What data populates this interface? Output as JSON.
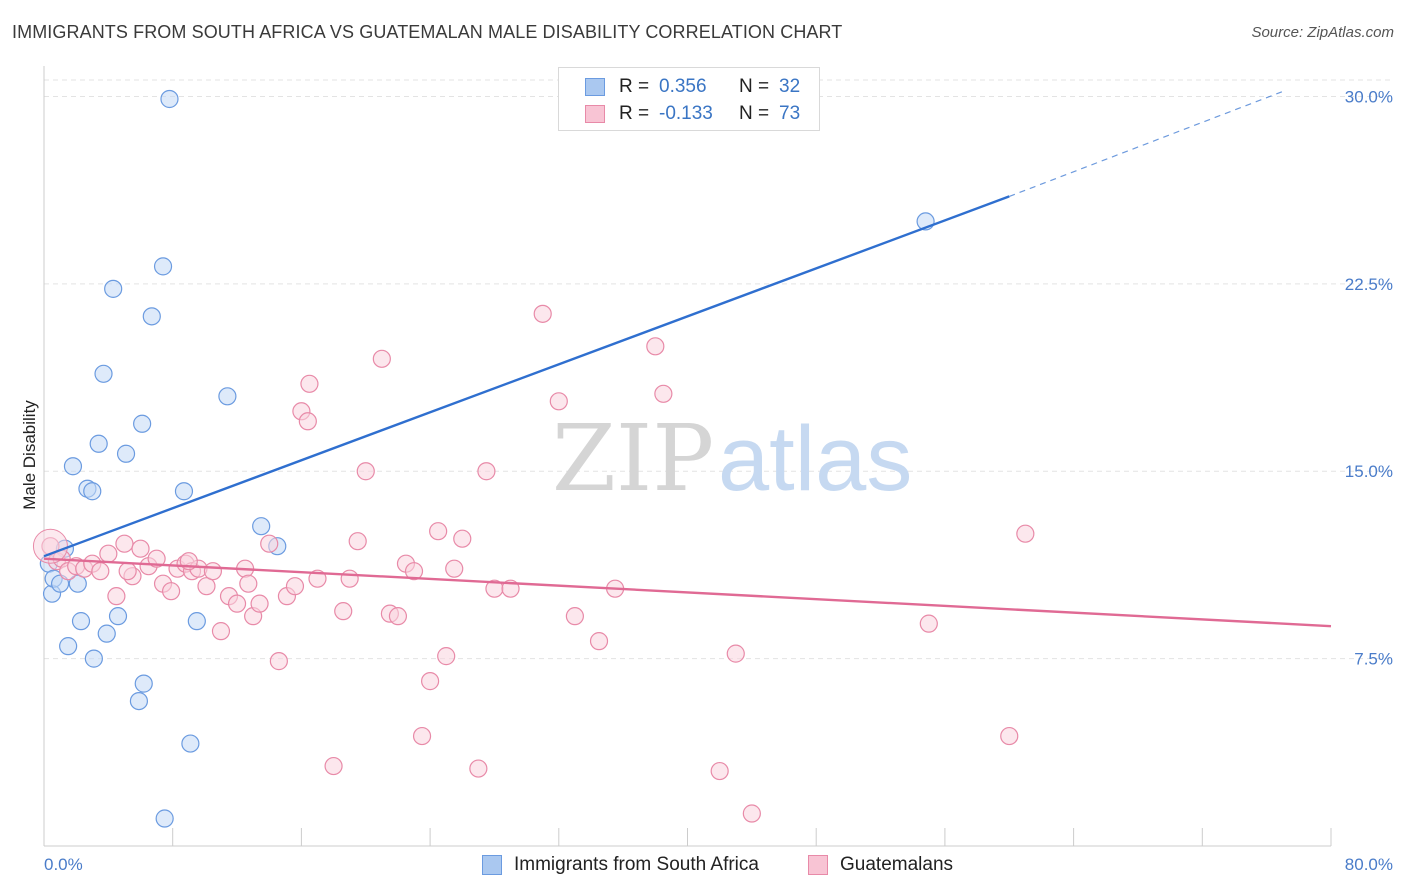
{
  "title": "IMMIGRANTS FROM SOUTH AFRICA VS GUATEMALAN MALE DISABILITY CORRELATION CHART",
  "source": "Source: ZipAtlas.com",
  "watermark": {
    "zip": "ZIP",
    "atlas": "atlas"
  },
  "legend": {
    "rows": [
      {
        "r_label": "R =",
        "r_value": "0.356",
        "n_label": "N =",
        "n_value": "32",
        "color": "#aac8f0",
        "border": "#6b9be0"
      },
      {
        "r_label": "R =",
        "r_value": "-0.133",
        "n_label": "N =",
        "n_value": "73",
        "color": "#f8c4d4",
        "border": "#e88aa8"
      }
    ]
  },
  "bottom_legend": [
    {
      "label": "Immigrants from South Africa",
      "color": "#aac8f0",
      "border": "#6b9be0"
    },
    {
      "label": "Guatemalans",
      "color": "#f8c4d4",
      "border": "#e88aa8"
    }
  ],
  "chart_data": {
    "type": "scatter",
    "ylabel": "Male Disability",
    "xlabel": "",
    "xlim": [
      0,
      80
    ],
    "ylim": [
      0,
      30.9
    ],
    "x_tick_labels": {
      "min": "0.0%",
      "max": "80.0%"
    },
    "y_ticks": [
      {
        "value": 7.5,
        "label": "7.5%"
      },
      {
        "value": 15.0,
        "label": "15.0%"
      },
      {
        "value": 22.5,
        "label": "22.5%"
      },
      {
        "value": 30.0,
        "label": "30.0%"
      }
    ],
    "grid": true,
    "series": [
      {
        "name": "Immigrants from South Africa",
        "color": "#6b9be0",
        "fill": "#c3d8f5",
        "line_color": "#2f6fcf",
        "trend": {
          "x0": 0,
          "y0": 11.6,
          "x1": 60,
          "y1": 26.0,
          "dash_to_x": 77,
          "dash_to_y": 30.2
        },
        "points": [
          [
            0.3,
            11.3
          ],
          [
            0.5,
            10.1
          ],
          [
            0.6,
            10.7
          ],
          [
            1.0,
            10.5
          ],
          [
            1.3,
            11.9
          ],
          [
            1.5,
            8.0
          ],
          [
            1.8,
            15.2
          ],
          [
            2.1,
            10.5
          ],
          [
            2.3,
            9.0
          ],
          [
            2.7,
            14.3
          ],
          [
            3.0,
            14.2
          ],
          [
            3.1,
            7.5
          ],
          [
            3.4,
            16.1
          ],
          [
            3.7,
            18.9
          ],
          [
            3.9,
            8.5
          ],
          [
            4.3,
            22.3
          ],
          [
            4.6,
            9.2
          ],
          [
            5.1,
            15.7
          ],
          [
            5.9,
            5.8
          ],
          [
            6.1,
            16.9
          ],
          [
            6.2,
            6.5
          ],
          [
            6.7,
            21.2
          ],
          [
            7.4,
            23.2
          ],
          [
            7.5,
            1.1
          ],
          [
            7.8,
            29.9
          ],
          [
            8.7,
            14.2
          ],
          [
            9.1,
            4.1
          ],
          [
            9.5,
            9.0
          ],
          [
            11.4,
            18.0
          ],
          [
            13.5,
            12.8
          ],
          [
            14.5,
            12.0
          ],
          [
            54.8,
            25.0
          ]
        ]
      },
      {
        "name": "Guatemalans",
        "color": "#e88aa8",
        "fill": "#f9d3df",
        "line_color": "#e06a94",
        "trend": {
          "x0": 0,
          "y0": 11.5,
          "x1": 80,
          "y1": 8.8
        },
        "points": [
          [
            0.4,
            12.0
          ],
          [
            0.8,
            11.4
          ],
          [
            1.1,
            11.5
          ],
          [
            1.5,
            11.0
          ],
          [
            2.0,
            11.2
          ],
          [
            2.5,
            11.1
          ],
          [
            3.0,
            11.3
          ],
          [
            3.5,
            11.0
          ],
          [
            4.0,
            11.7
          ],
          [
            4.5,
            10.0
          ],
          [
            5.0,
            12.1
          ],
          [
            5.5,
            10.8
          ],
          [
            6.0,
            11.9
          ],
          [
            6.5,
            11.2
          ],
          [
            7.0,
            11.5
          ],
          [
            7.4,
            10.5
          ],
          [
            7.9,
            10.2
          ],
          [
            8.3,
            11.1
          ],
          [
            8.8,
            11.3
          ],
          [
            9.2,
            11.0
          ],
          [
            9.6,
            11.1
          ],
          [
            10.1,
            10.4
          ],
          [
            10.5,
            11.0
          ],
          [
            11.0,
            8.6
          ],
          [
            11.5,
            10.0
          ],
          [
            12.0,
            9.7
          ],
          [
            12.5,
            11.1
          ],
          [
            13.0,
            9.2
          ],
          [
            13.4,
            9.7
          ],
          [
            14.0,
            12.1
          ],
          [
            14.6,
            7.4
          ],
          [
            15.1,
            10.0
          ],
          [
            15.6,
            10.4
          ],
          [
            16.0,
            17.4
          ],
          [
            16.4,
            17.0
          ],
          [
            17.0,
            10.7
          ],
          [
            18.0,
            3.2
          ],
          [
            18.6,
            9.4
          ],
          [
            19.0,
            10.7
          ],
          [
            19.5,
            12.2
          ],
          [
            20.0,
            15.0
          ],
          [
            21.0,
            19.5
          ],
          [
            21.5,
            9.3
          ],
          [
            22.0,
            9.2
          ],
          [
            22.5,
            11.3
          ],
          [
            23.0,
            11.0
          ],
          [
            23.5,
            4.4
          ],
          [
            24.0,
            6.6
          ],
          [
            24.5,
            12.6
          ],
          [
            25.0,
            7.6
          ],
          [
            25.5,
            11.1
          ],
          [
            26.0,
            12.3
          ],
          [
            27.0,
            3.1
          ],
          [
            27.5,
            15.0
          ],
          [
            28.0,
            10.3
          ],
          [
            29.0,
            10.3
          ],
          [
            31.0,
            21.3
          ],
          [
            32.0,
            17.8
          ],
          [
            33.0,
            9.2
          ],
          [
            34.5,
            8.2
          ],
          [
            35.5,
            10.3
          ],
          [
            38.0,
            20.0
          ],
          [
            38.5,
            18.1
          ],
          [
            42.0,
            3.0
          ],
          [
            43.0,
            7.7
          ],
          [
            44.0,
            1.3
          ],
          [
            55.0,
            8.9
          ],
          [
            60.0,
            4.4
          ],
          [
            61.0,
            12.5
          ],
          [
            9.0,
            11.4
          ],
          [
            12.7,
            10.5
          ],
          [
            16.5,
            18.5
          ],
          [
            5.2,
            11.0
          ]
        ]
      }
    ]
  }
}
